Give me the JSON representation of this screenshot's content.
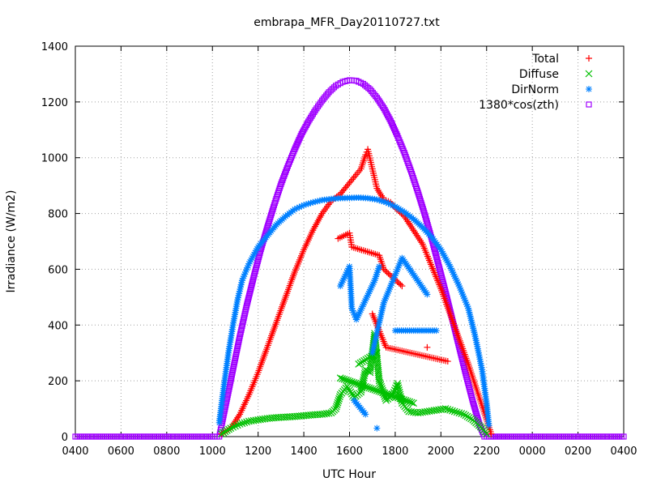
{
  "chart_data": {
    "type": "scatter",
    "title": "embrapa_MFR_Day20110727.txt",
    "xlabel": "UTC Hour",
    "ylabel": "Irradiance (W/m2)",
    "x_tick_labels": [
      "0400",
      "0600",
      "0800",
      "1000",
      "1200",
      "1400",
      "1600",
      "1800",
      "2000",
      "2200",
      "0000",
      "0200",
      "0400"
    ],
    "x_ticks_hours": [
      4,
      6,
      8,
      10,
      12,
      14,
      16,
      18,
      20,
      22,
      24,
      26,
      28
    ],
    "xlim_hours": [
      4,
      28
    ],
    "ylim": [
      0,
      1400
    ],
    "y_ticks": [
      0,
      200,
      400,
      600,
      800,
      1000,
      1200,
      1400
    ],
    "grid": true,
    "legend_position": "top-right",
    "series": [
      {
        "name": "Total",
        "marker": "plus",
        "color": "#ff0000",
        "points": [
          [
            10.4,
            10
          ],
          [
            10.8,
            30
          ],
          [
            11.2,
            80
          ],
          [
            11.6,
            150
          ],
          [
            12.0,
            230
          ],
          [
            12.4,
            320
          ],
          [
            12.8,
            410
          ],
          [
            13.2,
            500
          ],
          [
            13.6,
            590
          ],
          [
            14.0,
            670
          ],
          [
            14.4,
            740
          ],
          [
            14.8,
            800
          ],
          [
            15.2,
            845
          ],
          [
            15.6,
            870
          ],
          [
            16.0,
            910
          ],
          [
            16.3,
            940
          ],
          [
            16.5,
            960
          ],
          [
            16.7,
            1010
          ],
          [
            16.8,
            1030
          ],
          [
            17.0,
            960
          ],
          [
            17.2,
            890
          ],
          [
            17.5,
            850
          ],
          [
            17.8,
            840
          ],
          [
            18.0,
            820
          ],
          [
            18.4,
            790
          ],
          [
            18.8,
            740
          ],
          [
            19.2,
            690
          ],
          [
            19.6,
            610
          ],
          [
            20.0,
            530
          ],
          [
            20.4,
            440
          ],
          [
            20.8,
            350
          ],
          [
            21.2,
            260
          ],
          [
            21.6,
            160
          ],
          [
            22.0,
            60
          ],
          [
            22.2,
            10
          ],
          [
            15.5,
            710
          ],
          [
            16.0,
            730
          ],
          [
            16.1,
            680
          ],
          [
            17.3,
            650
          ],
          [
            17.5,
            600
          ],
          [
            18.3,
            540
          ],
          [
            17.0,
            440
          ],
          [
            17.6,
            320
          ],
          [
            20.3,
            270
          ],
          [
            19.4,
            320
          ]
        ]
      },
      {
        "name": "Diffuse",
        "marker": "cross",
        "color": "#00c000",
        "points": [
          [
            10.4,
            10
          ],
          [
            10.8,
            30
          ],
          [
            11.2,
            45
          ],
          [
            11.6,
            55
          ],
          [
            12.0,
            60
          ],
          [
            12.4,
            65
          ],
          [
            12.8,
            68
          ],
          [
            13.2,
            70
          ],
          [
            13.6,
            72
          ],
          [
            14.0,
            75
          ],
          [
            14.4,
            78
          ],
          [
            14.8,
            80
          ],
          [
            15.2,
            85
          ],
          [
            15.4,
            100
          ],
          [
            15.6,
            150
          ],
          [
            15.9,
            180
          ],
          [
            16.2,
            140
          ],
          [
            16.5,
            160
          ],
          [
            16.7,
            240
          ],
          [
            16.9,
            230
          ],
          [
            17.1,
            370
          ],
          [
            17.3,
            200
          ],
          [
            17.6,
            130
          ],
          [
            17.9,
            150
          ],
          [
            18.1,
            190
          ],
          [
            18.3,
            120
          ],
          [
            18.6,
            90
          ],
          [
            19.0,
            85
          ],
          [
            19.4,
            90
          ],
          [
            19.8,
            95
          ],
          [
            20.2,
            100
          ],
          [
            20.6,
            90
          ],
          [
            21.0,
            80
          ],
          [
            21.4,
            60
          ],
          [
            21.8,
            30
          ],
          [
            22.0,
            10
          ],
          [
            16.4,
            260
          ],
          [
            17.2,
            300
          ],
          [
            15.6,
            210
          ],
          [
            18.8,
            120
          ]
        ]
      },
      {
        "name": "DirNorm",
        "marker": "star",
        "color": "#0080ff",
        "points": [
          [
            10.3,
            50
          ],
          [
            10.5,
            180
          ],
          [
            10.7,
            300
          ],
          [
            10.9,
            400
          ],
          [
            11.1,
            490
          ],
          [
            11.3,
            560
          ],
          [
            11.6,
            620
          ],
          [
            12.0,
            680
          ],
          [
            12.4,
            720
          ],
          [
            12.8,
            760
          ],
          [
            13.2,
            790
          ],
          [
            13.6,
            815
          ],
          [
            14.0,
            830
          ],
          [
            14.4,
            840
          ],
          [
            14.8,
            848
          ],
          [
            15.2,
            852
          ],
          [
            15.6,
            855
          ],
          [
            16.0,
            856
          ],
          [
            16.4,
            857
          ],
          [
            16.8,
            855
          ],
          [
            17.2,
            850
          ],
          [
            17.6,
            840
          ],
          [
            18.0,
            825
          ],
          [
            18.4,
            805
          ],
          [
            18.8,
            780
          ],
          [
            19.2,
            750
          ],
          [
            19.6,
            715
          ],
          [
            20.0,
            670
          ],
          [
            20.4,
            610
          ],
          [
            20.8,
            540
          ],
          [
            21.2,
            460
          ],
          [
            21.5,
            360
          ],
          [
            21.8,
            240
          ],
          [
            22.0,
            120
          ],
          [
            22.1,
            40
          ],
          [
            15.6,
            540
          ],
          [
            16.0,
            610
          ],
          [
            16.1,
            460
          ],
          [
            16.3,
            420
          ],
          [
            17.1,
            560
          ],
          [
            17.3,
            610
          ],
          [
            17.0,
            300
          ],
          [
            17.5,
            480
          ],
          [
            18.3,
            640
          ],
          [
            19.4,
            510
          ],
          [
            18.0,
            380
          ],
          [
            19.8,
            380
          ],
          [
            17.2,
            30
          ],
          [
            16.2,
            130
          ],
          [
            16.7,
            80
          ]
        ]
      },
      {
        "name": "1380*cos(zth)",
        "marker": "square",
        "color": "#a000ff",
        "points": [
          [
            4,
            0
          ],
          [
            5,
            0
          ],
          [
            6,
            0
          ],
          [
            7,
            0
          ],
          [
            8,
            0
          ],
          [
            9,
            0
          ],
          [
            10.0,
            0
          ],
          [
            10.3,
            0
          ],
          [
            10.4,
            40
          ],
          [
            10.6,
            120
          ],
          [
            10.8,
            200
          ],
          [
            11.0,
            280
          ],
          [
            11.2,
            360
          ],
          [
            11.5,
            470
          ],
          [
            11.8,
            570
          ],
          [
            12.1,
            665
          ],
          [
            12.4,
            750
          ],
          [
            12.7,
            830
          ],
          [
            13.0,
            905
          ],
          [
            13.3,
            970
          ],
          [
            13.6,
            1030
          ],
          [
            13.9,
            1085
          ],
          [
            14.2,
            1130
          ],
          [
            14.5,
            1170
          ],
          [
            14.8,
            1205
          ],
          [
            15.1,
            1235
          ],
          [
            15.4,
            1258
          ],
          [
            15.7,
            1272
          ],
          [
            16.0,
            1278
          ],
          [
            16.3,
            1276
          ],
          [
            16.6,
            1265
          ],
          [
            16.9,
            1245
          ],
          [
            17.2,
            1215
          ],
          [
            17.5,
            1178
          ],
          [
            17.8,
            1132
          ],
          [
            18.1,
            1078
          ],
          [
            18.4,
            1018
          ],
          [
            18.7,
            950
          ],
          [
            19.0,
            875
          ],
          [
            19.3,
            795
          ],
          [
            19.6,
            708
          ],
          [
            19.9,
            615
          ],
          [
            20.2,
            520
          ],
          [
            20.5,
            420
          ],
          [
            20.8,
            320
          ],
          [
            21.1,
            220
          ],
          [
            21.4,
            125
          ],
          [
            21.7,
            40
          ],
          [
            21.9,
            0
          ],
          [
            22.2,
            0
          ],
          [
            23,
            0
          ],
          [
            24,
            0
          ],
          [
            25,
            0
          ],
          [
            26,
            0
          ],
          [
            27,
            0
          ],
          [
            28,
            0
          ]
        ]
      }
    ]
  }
}
